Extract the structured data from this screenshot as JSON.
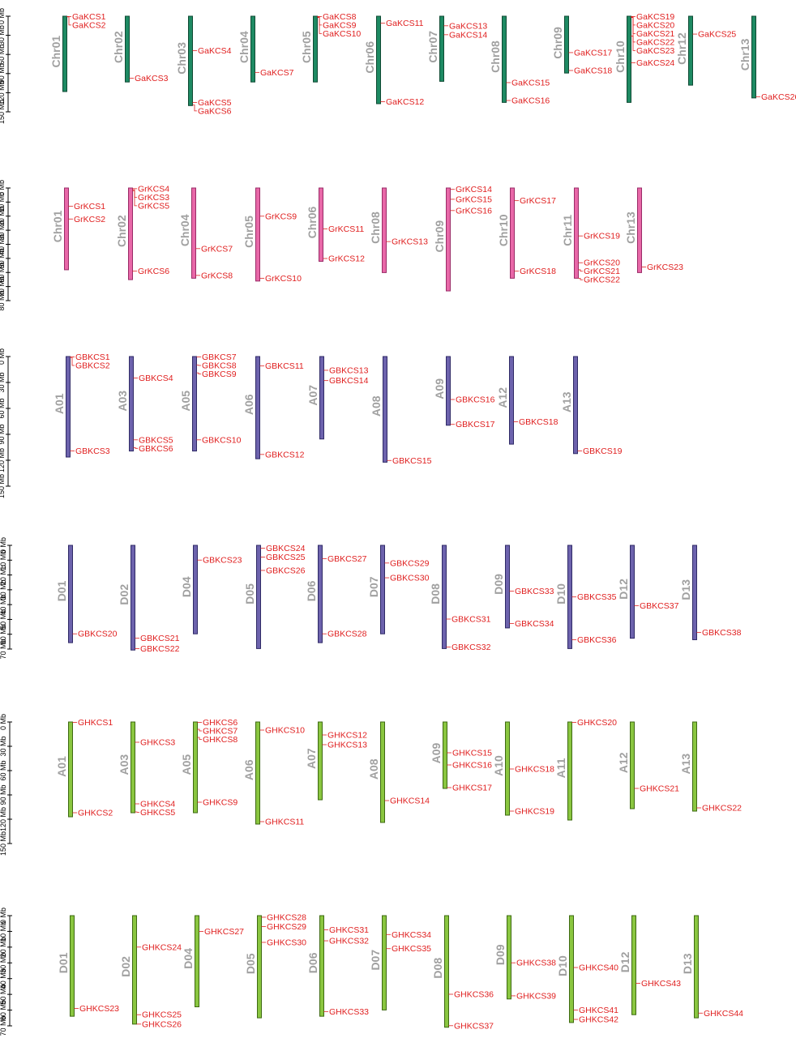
{
  "colors": {
    "gene_label": "#e02020",
    "chr_label": "#a0a0a0",
    "axis": "#000000"
  },
  "panels": [
    {
      "id": "G. arboreum",
      "fill": "#1e8a63",
      "stroke": "#0f4a33",
      "axis": {
        "max": 150,
        "ticks": [
          0,
          30,
          60,
          90,
          120,
          150
        ],
        "unit": "Mb"
      },
      "chromosomes": [
        {
          "name": "Chr01",
          "length": 118,
          "genes": [
            {
              "name": "GaKCS1",
              "pos": 0.5
            },
            {
              "name": "GaKCS2",
              "pos": 1
            }
          ]
        },
        {
          "name": "Chr02",
          "length": 103,
          "genes": [
            {
              "name": "GaKCS3",
              "pos": 97
            }
          ]
        },
        {
          "name": "Chr03",
          "length": 140,
          "genes": [
            {
              "name": "GaKCS4",
              "pos": 54
            },
            {
              "name": "GaKCS5",
              "pos": 135
            },
            {
              "name": "GaKCS6",
              "pos": 139
            }
          ]
        },
        {
          "name": "Chr04",
          "length": 103,
          "genes": [
            {
              "name": "GaKCS7",
              "pos": 88
            }
          ]
        },
        {
          "name": "Chr05",
          "length": 103,
          "genes": [
            {
              "name": "GaKCS8",
              "pos": 0.5
            },
            {
              "name": "GaKCS9",
              "pos": 1.2
            },
            {
              "name": "GaKCS10",
              "pos": 2
            }
          ]
        },
        {
          "name": "Chr06",
          "length": 137,
          "genes": [
            {
              "name": "GaKCS11",
              "pos": 11
            },
            {
              "name": "GaKCS12",
              "pos": 134
            }
          ]
        },
        {
          "name": "Chr07",
          "length": 102,
          "genes": [
            {
              "name": "GaKCS13",
              "pos": 15
            },
            {
              "name": "GaKCS14",
              "pos": 29
            }
          ]
        },
        {
          "name": "Chr08",
          "length": 135,
          "genes": [
            {
              "name": "GaKCS15",
              "pos": 104
            },
            {
              "name": "GaKCS16",
              "pos": 132
            }
          ]
        },
        {
          "name": "Chr09",
          "length": 89,
          "genes": [
            {
              "name": "GaKCS17",
              "pos": 57
            },
            {
              "name": "GaKCS18",
              "pos": 85
            }
          ]
        },
        {
          "name": "Chr10",
          "length": 135,
          "genes": [
            {
              "name": "GaKCS19",
              "pos": 0.5
            },
            {
              "name": "GaKCS20",
              "pos": 1
            },
            {
              "name": "GaKCS21",
              "pos": 1.5
            },
            {
              "name": "GaKCS22",
              "pos": 2
            },
            {
              "name": "GaKCS23",
              "pos": 31
            },
            {
              "name": "GaKCS24",
              "pos": 73
            }
          ]
        },
        {
          "name": "Chr12",
          "length": 108,
          "genes": [
            {
              "name": "GaKCS25",
              "pos": 28
            }
          ]
        },
        {
          "name": "Chr13",
          "length": 128,
          "genes": [
            {
              "name": "GaKCS26",
              "pos": 126
            }
          ]
        }
      ]
    },
    {
      "id": "G. raimondii",
      "fill": "#e868a8",
      "stroke": "#9a2b67",
      "axis": {
        "max": 80,
        "ticks": [
          0,
          10,
          20,
          30,
          40,
          50,
          60,
          70,
          80
        ],
        "unit": "Mb"
      },
      "chromosomes": [
        {
          "name": "Chr01",
          "length": 58,
          "genes": [
            {
              "name": "GrKCS1",
              "pos": 13
            },
            {
              "name": "GrKCS2",
              "pos": 22
            }
          ]
        },
        {
          "name": "Chr02",
          "length": 65,
          "genes": [
            {
              "name": "GrKCS4",
              "pos": 0.5
            },
            {
              "name": "GrKCS3",
              "pos": 1.2
            },
            {
              "name": "GrKCS5",
              "pos": 2
            },
            {
              "name": "GrKCS6",
              "pos": 59
            }
          ]
        },
        {
          "name": "Chr04",
          "length": 64,
          "genes": [
            {
              "name": "GrKCS7",
              "pos": 43
            },
            {
              "name": "GrKCS8",
              "pos": 62
            }
          ]
        },
        {
          "name": "Chr05",
          "length": 66,
          "genes": [
            {
              "name": "GrKCS9",
              "pos": 20
            },
            {
              "name": "GrKCS10",
              "pos": 64
            }
          ]
        },
        {
          "name": "Chr06",
          "length": 52,
          "genes": [
            {
              "name": "GrKCS11",
              "pos": 29
            },
            {
              "name": "GrKCS12",
              "pos": 50
            }
          ]
        },
        {
          "name": "Chr08",
          "length": 60,
          "genes": [
            {
              "name": "GrKCS13",
              "pos": 38
            }
          ]
        },
        {
          "name": "Chr09",
          "length": 73,
          "genes": [
            {
              "name": "GrKCS14",
              "pos": 1
            },
            {
              "name": "GrKCS15",
              "pos": 8
            },
            {
              "name": "GrKCS16",
              "pos": 16
            }
          ]
        },
        {
          "name": "Chr10",
          "length": 64,
          "genes": [
            {
              "name": "GrKCS17",
              "pos": 9
            },
            {
              "name": "GrKCS18",
              "pos": 59
            }
          ]
        },
        {
          "name": "Chr11",
          "length": 64,
          "genes": [
            {
              "name": "GrKCS19",
              "pos": 34
            },
            {
              "name": "GrKCS20",
              "pos": 53
            },
            {
              "name": "GrKCS21",
              "pos": 58
            },
            {
              "name": "GrKCS22",
              "pos": 64
            }
          ]
        },
        {
          "name": "Chr13",
          "length": 60,
          "genes": [
            {
              "name": "GrKCS23",
              "pos": 56
            }
          ]
        }
      ]
    },
    {
      "id": "G. barbadense A",
      "fill": "#6d63ad",
      "stroke": "#2f2a66",
      "axis": {
        "max": 150,
        "ticks": [
          0,
          30,
          60,
          90,
          120,
          150
        ],
        "unit": "Mb"
      },
      "chromosomes": [
        {
          "name": "A01",
          "length": 117,
          "genes": [
            {
              "name": "GBKCS1",
              "pos": 0.5
            },
            {
              "name": "GBKCS2",
              "pos": 1
            },
            {
              "name": "GBKCS3",
              "pos": 110
            }
          ]
        },
        {
          "name": "A03",
          "length": 110,
          "genes": [
            {
              "name": "GBKCS4",
              "pos": 25
            },
            {
              "name": "GBKCS5",
              "pos": 97
            },
            {
              "name": "GBKCS6",
              "pos": 106
            }
          ]
        },
        {
          "name": "A05",
          "length": 110,
          "genes": [
            {
              "name": "GBKCS7",
              "pos": 0.5
            },
            {
              "name": "GBKCS8",
              "pos": 10
            },
            {
              "name": "GBKCS9",
              "pos": 19
            },
            {
              "name": "GBKCS10",
              "pos": 97
            }
          ]
        },
        {
          "name": "A06",
          "length": 119,
          "genes": [
            {
              "name": "GBKCS11",
              "pos": 11
            },
            {
              "name": "GBKCS12",
              "pos": 114
            }
          ]
        },
        {
          "name": "A07",
          "length": 96,
          "genes": [
            {
              "name": "GBKCS13",
              "pos": 16
            },
            {
              "name": "GBKCS14",
              "pos": 28
            }
          ]
        },
        {
          "name": "A08",
          "length": 123,
          "genes": [
            {
              "name": "GBKCS15",
              "pos": 121
            }
          ]
        },
        {
          "name": "A09",
          "length": 80,
          "genes": [
            {
              "name": "GBKCS16",
              "pos": 50
            },
            {
              "name": "GBKCS17",
              "pos": 79
            }
          ]
        },
        {
          "name": "A12",
          "length": 102,
          "genes": [
            {
              "name": "GBKCS18",
              "pos": 76
            }
          ]
        },
        {
          "name": "A13",
          "length": 113,
          "genes": [
            {
              "name": "GBKCS19",
              "pos": 110
            }
          ]
        }
      ]
    },
    {
      "id": "G. barbadense D",
      "fill": "#6d63ad",
      "stroke": "#2f2a66",
      "axis": {
        "max": 70,
        "ticks": [
          0,
          10,
          20,
          30,
          40,
          50,
          60,
          70
        ],
        "unit": "Mb"
      },
      "chromosomes": [
        {
          "name": "D01",
          "length": 66,
          "genes": [
            {
              "name": "GBKCS20",
              "pos": 60
            }
          ]
        },
        {
          "name": "D02",
          "length": 71,
          "genes": [
            {
              "name": "GBKCS21",
              "pos": 63
            },
            {
              "name": "GBKCS22",
              "pos": 70
            }
          ]
        },
        {
          "name": "D04",
          "length": 60,
          "genes": [
            {
              "name": "GBKCS23",
              "pos": 10
            }
          ]
        },
        {
          "name": "D05",
          "length": 70,
          "genes": [
            {
              "name": "GBKCS24",
              "pos": 2
            },
            {
              "name": "GBKCS25",
              "pos": 8
            },
            {
              "name": "GBKCS26",
              "pos": 17
            }
          ]
        },
        {
          "name": "D06",
          "length": 66,
          "genes": [
            {
              "name": "GBKCS27",
              "pos": 9
            },
            {
              "name": "GBKCS28",
              "pos": 60
            }
          ]
        },
        {
          "name": "D07",
          "length": 60,
          "genes": [
            {
              "name": "GBKCS29",
              "pos": 12
            },
            {
              "name": "GBKCS30",
              "pos": 22
            }
          ]
        },
        {
          "name": "D08",
          "length": 70,
          "genes": [
            {
              "name": "GBKCS31",
              "pos": 50
            },
            {
              "name": "GBKCS32",
              "pos": 69
            }
          ]
        },
        {
          "name": "D09",
          "length": 56,
          "genes": [
            {
              "name": "GBKCS33",
              "pos": 31
            },
            {
              "name": "GBKCS34",
              "pos": 53
            }
          ]
        },
        {
          "name": "D10",
          "length": 70,
          "genes": [
            {
              "name": "GBKCS35",
              "pos": 35
            },
            {
              "name": "GBKCS36",
              "pos": 64
            }
          ]
        },
        {
          "name": "D12",
          "length": 63,
          "genes": [
            {
              "name": "GBKCS37",
              "pos": 41
            }
          ]
        },
        {
          "name": "D13",
          "length": 64,
          "genes": [
            {
              "name": "GBKCS38",
              "pos": 59
            }
          ]
        }
      ]
    },
    {
      "id": "G. hirsutum A",
      "fill": "#8ac640",
      "stroke": "#3e6a12",
      "axis": {
        "max": 150,
        "ticks": [
          0,
          30,
          60,
          90,
          120,
          150
        ],
        "unit": "Mb"
      },
      "chromosomes": [
        {
          "name": "A01",
          "length": 117,
          "genes": [
            {
              "name": "GHKCS1",
              "pos": 0.5
            },
            {
              "name": "GHKCS2",
              "pos": 112
            }
          ]
        },
        {
          "name": "A03",
          "length": 112,
          "genes": [
            {
              "name": "GHKCS3",
              "pos": 25
            },
            {
              "name": "GHKCS4",
              "pos": 101
            },
            {
              "name": "GHKCS5",
              "pos": 111
            }
          ]
        },
        {
          "name": "A05",
          "length": 112,
          "genes": [
            {
              "name": "GHKCS6",
              "pos": 0.5
            },
            {
              "name": "GHKCS7",
              "pos": 9
            },
            {
              "name": "GHKCS8",
              "pos": 19
            },
            {
              "name": "GHKCS9",
              "pos": 99
            }
          ]
        },
        {
          "name": "A06",
          "length": 126,
          "genes": [
            {
              "name": "GHKCS10",
              "pos": 10
            },
            {
              "name": "GHKCS11",
              "pos": 123
            }
          ]
        },
        {
          "name": "A07",
          "length": 96,
          "genes": [
            {
              "name": "GHKCS12",
              "pos": 16
            },
            {
              "name": "GHKCS13",
              "pos": 28
            }
          ]
        },
        {
          "name": "A08",
          "length": 124,
          "genes": [
            {
              "name": "GHKCS14",
              "pos": 97
            }
          ]
        },
        {
          "name": "A09",
          "length": 82,
          "genes": [
            {
              "name": "GHKCS15",
              "pos": 38
            },
            {
              "name": "GHKCS16",
              "pos": 53
            },
            {
              "name": "GHKCS17",
              "pos": 81
            }
          ]
        },
        {
          "name": "A10",
          "length": 115,
          "genes": [
            {
              "name": "GHKCS18",
              "pos": 58
            },
            {
              "name": "GHKCS19",
              "pos": 110
            }
          ]
        },
        {
          "name": "A11",
          "length": 121,
          "genes": [
            {
              "name": "GHKCS20",
              "pos": 0.5
            }
          ]
        },
        {
          "name": "A12",
          "length": 107,
          "genes": [
            {
              "name": "GHKCS21",
              "pos": 82
            }
          ]
        },
        {
          "name": "A13",
          "length": 110,
          "genes": [
            {
              "name": "GHKCS22",
              "pos": 106
            }
          ]
        }
      ]
    },
    {
      "id": "G. hirsutum D",
      "fill": "#8ac640",
      "stroke": "#3e6a12",
      "axis": {
        "max": 70,
        "ticks": [
          0,
          10,
          20,
          30,
          40,
          50,
          60,
          70
        ],
        "unit": "Mb"
      },
      "chromosomes": [
        {
          "name": "D01",
          "length": 64,
          "genes": [
            {
              "name": "GHKCS23",
              "pos": 59
            }
          ]
        },
        {
          "name": "D02",
          "length": 69,
          "genes": [
            {
              "name": "GHKCS24",
              "pos": 20
            },
            {
              "name": "GHKCS25",
              "pos": 63
            },
            {
              "name": "GHKCS26",
              "pos": 69
            }
          ]
        },
        {
          "name": "D04",
          "length": 58,
          "genes": [
            {
              "name": "GHKCS27",
              "pos": 10
            }
          ]
        },
        {
          "name": "D05",
          "length": 65,
          "genes": [
            {
              "name": "GHKCS28",
              "pos": 1
            },
            {
              "name": "GHKCS29",
              "pos": 7
            },
            {
              "name": "GHKCS30",
              "pos": 17
            }
          ]
        },
        {
          "name": "D06",
          "length": 64,
          "genes": [
            {
              "name": "GHKCS31",
              "pos": 9
            },
            {
              "name": "GHKCS32",
              "pos": 16
            },
            {
              "name": "GHKCS33",
              "pos": 61
            }
          ]
        },
        {
          "name": "D07",
          "length": 60,
          "genes": [
            {
              "name": "GHKCS34",
              "pos": 12
            },
            {
              "name": "GHKCS35",
              "pos": 21
            }
          ]
        },
        {
          "name": "D08",
          "length": 71,
          "genes": [
            {
              "name": "GHKCS36",
              "pos": 50
            },
            {
              "name": "GHKCS37",
              "pos": 70
            }
          ]
        },
        {
          "name": "D09",
          "length": 53,
          "genes": [
            {
              "name": "GHKCS38",
              "pos": 30
            },
            {
              "name": "GHKCS39",
              "pos": 51
            }
          ]
        },
        {
          "name": "D10",
          "length": 68,
          "genes": [
            {
              "name": "GHKCS40",
              "pos": 33
            },
            {
              "name": "GHKCS41",
              "pos": 60
            },
            {
              "name": "GHKCS42",
              "pos": 66
            }
          ]
        },
        {
          "name": "D12",
          "length": 63,
          "genes": [
            {
              "name": "GHKCS43",
              "pos": 43
            }
          ]
        },
        {
          "name": "D13",
          "length": 65,
          "genes": [
            {
              "name": "GHKCS44",
              "pos": 62
            }
          ]
        }
      ]
    }
  ]
}
